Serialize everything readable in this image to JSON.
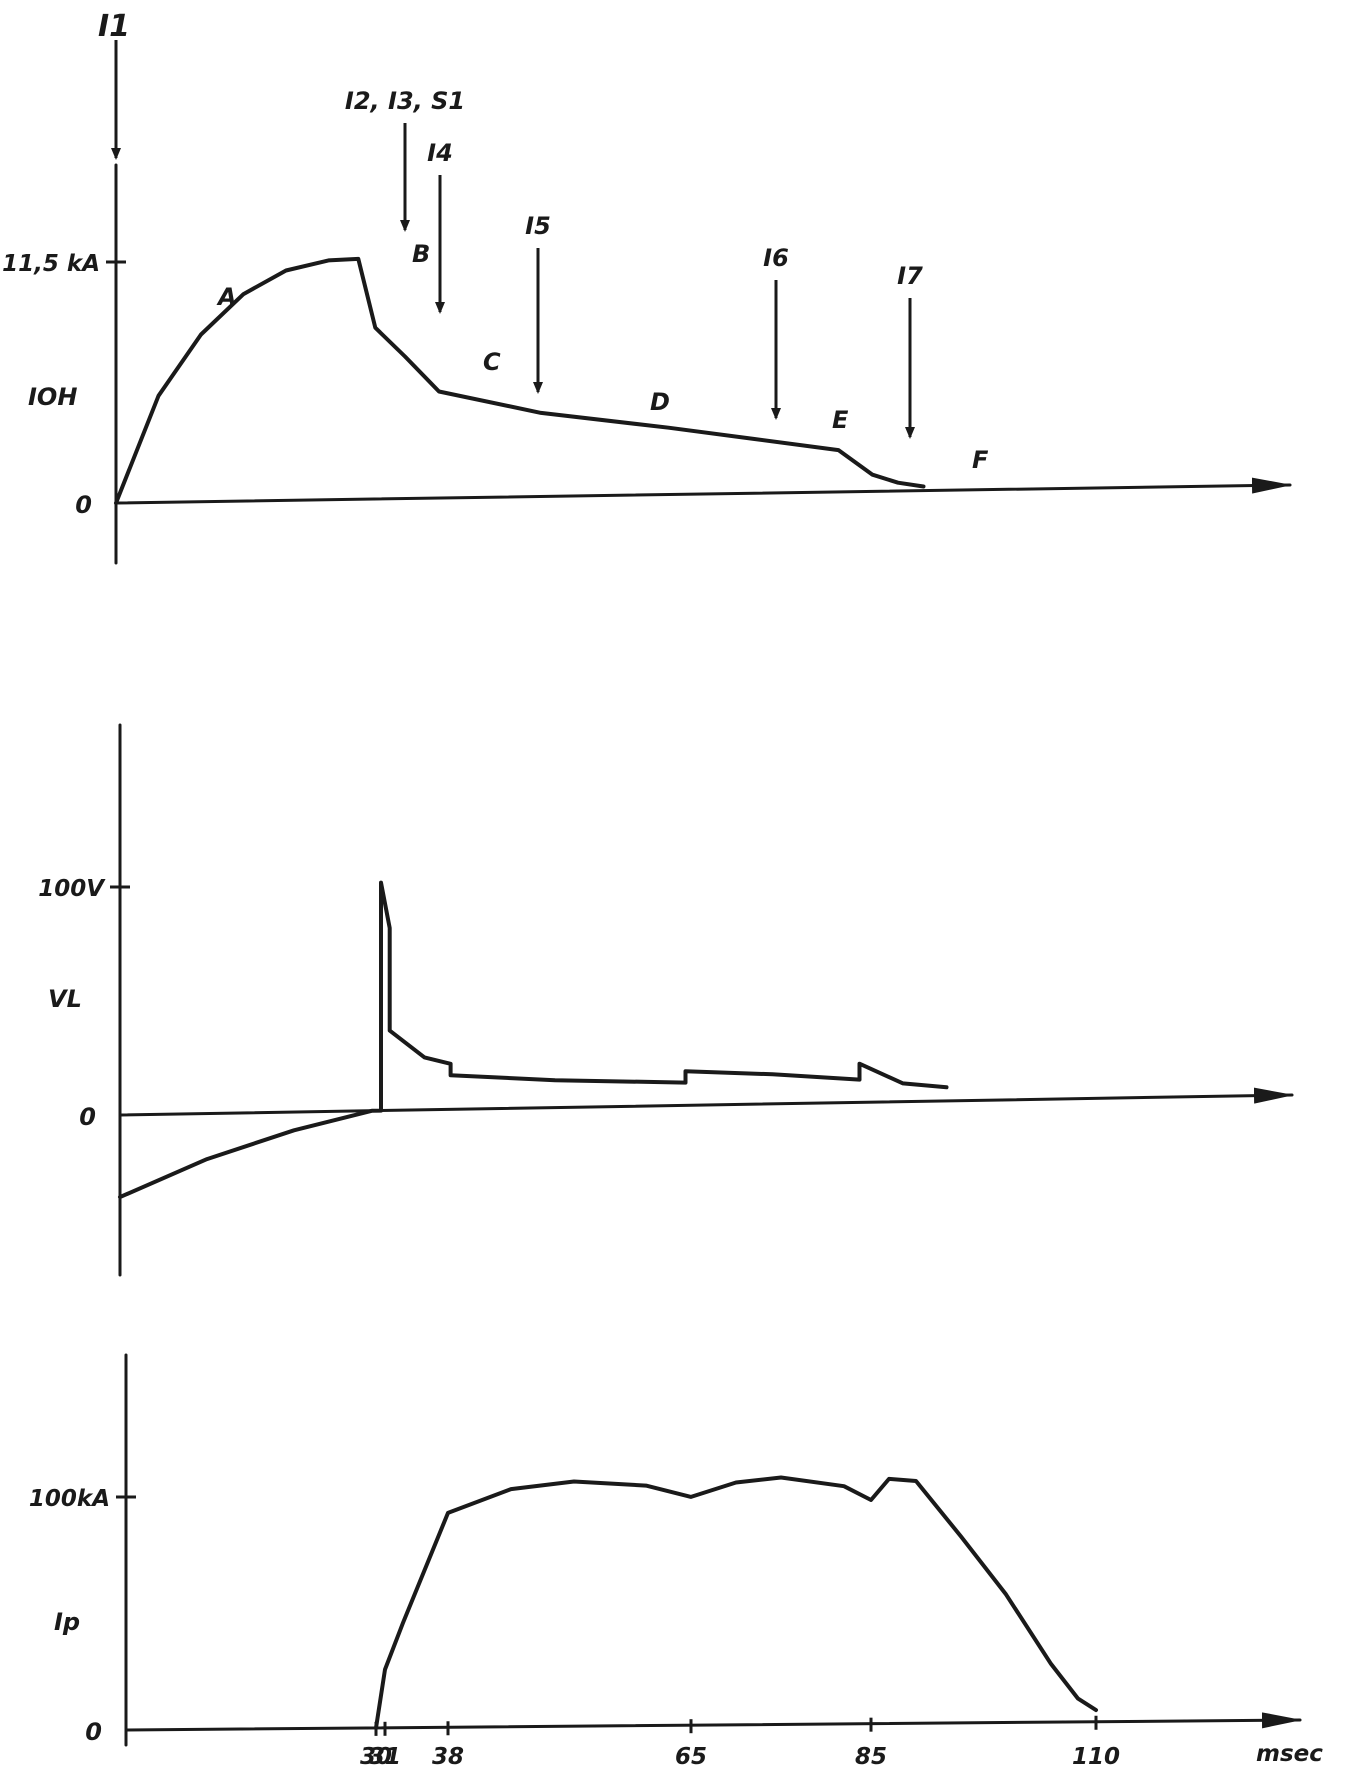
{
  "chart_data": [
    {
      "type": "line",
      "ylabel": "IOH",
      "y_tick_labels": [
        "11,5 kA",
        "0"
      ],
      "axis_top_label": "I1",
      "series": [
        {
          "x": [
            0,
            5,
            10,
            15,
            20,
            25,
            28.5,
            30.5,
            34,
            38,
            50,
            65,
            75,
            85,
            89,
            92,
            95
          ],
          "y": [
            0,
            5.1,
            8.0,
            9.9,
            11.0,
            11.45,
            11.5,
            8.2,
            6.8,
            5.1,
            4.0,
            3.2,
            2.6,
            2.0,
            0.8,
            0.4,
            0.2
          ]
        }
      ],
      "segment_labels": [
        "A",
        "B",
        "C",
        "D",
        "E",
        "F"
      ],
      "event_markers": [
        {
          "label": "I2, I3, S1",
          "x": 28.5
        },
        {
          "label": "I4",
          "x": 31
        },
        {
          "label": "I5",
          "x": 38
        },
        {
          "label": "I6",
          "x": 65
        },
        {
          "label": "I7",
          "x": 85
        }
      ],
      "grid": false
    },
    {
      "type": "line",
      "ylabel": "VL",
      "y_tick_labels": [
        "100V",
        "0"
      ],
      "series": [
        {
          "x": [
            0,
            10,
            20,
            29,
            30,
            30,
            31,
            31,
            35,
            38,
            38,
            50,
            65,
            65,
            75,
            85,
            85,
            90,
            95
          ],
          "y": [
            -36,
            -20,
            -8,
            0,
            0,
            100,
            80,
            35,
            23,
            20,
            15,
            12,
            10,
            15,
            13,
            10,
            17,
            8,
            6
          ]
        }
      ],
      "grid": false
    },
    {
      "type": "line",
      "ylabel": "Ip",
      "y_tick_labels": [
        "100kA",
        "0"
      ],
      "x_tick_labels": [
        "30",
        "31",
        "38",
        "65",
        "85",
        "110"
      ],
      "x_unit": "msec",
      "series": [
        {
          "x": [
            30,
            31,
            33,
            38,
            45,
            52,
            60,
            65,
            70,
            75,
            82,
            85,
            87,
            90,
            95,
            100,
            105,
            108,
            110
          ],
          "y": [
            0,
            25,
            45,
            92,
            102,
            105,
            103,
            98,
            104,
            106,
            102,
            96,
            105,
            104,
            80,
            55,
            25,
            10,
            5
          ]
        }
      ],
      "grid": false
    }
  ]
}
